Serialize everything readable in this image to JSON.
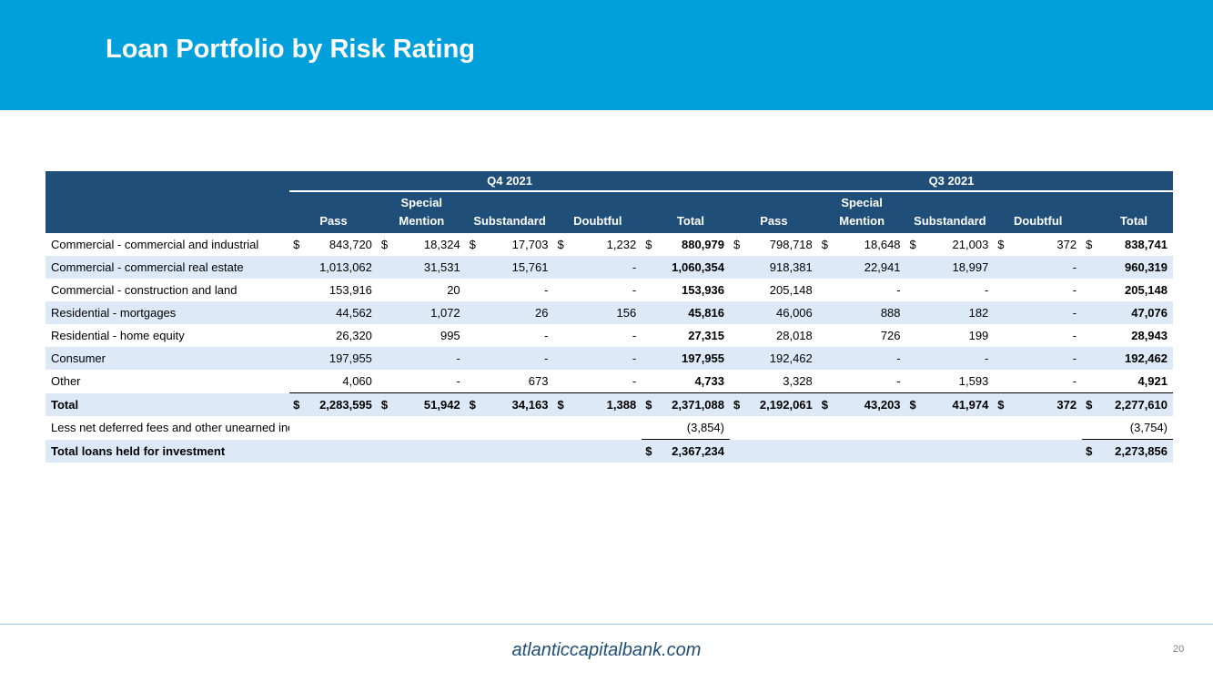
{
  "title": "Loan Portfolio by Risk Rating",
  "periods": [
    "Q4 2021",
    "Q3 2021"
  ],
  "columns": [
    {
      "l1": "",
      "l2": "Pass"
    },
    {
      "l1": "Special",
      "l2": "Mention"
    },
    {
      "l1": "",
      "l2": "Substandard"
    },
    {
      "l1": "",
      "l2": "Doubtful"
    },
    {
      "l1": "",
      "l2": "Total"
    }
  ],
  "rows": [
    {
      "label": "Commercial - commercial and industrial",
      "q4": [
        "843,720",
        "18,324",
        "17,703",
        "1,232",
        "880,979"
      ],
      "q3": [
        "798,718",
        "18,648",
        "21,003",
        "372",
        "838,741"
      ]
    },
    {
      "label": "Commercial - commercial real estate",
      "q4": [
        "1,013,062",
        "31,531",
        "15,761",
        "-",
        "1,060,354"
      ],
      "q3": [
        "918,381",
        "22,941",
        "18,997",
        "-",
        "960,319"
      ]
    },
    {
      "label": "Commercial - construction and land",
      "q4": [
        "153,916",
        "20",
        "-",
        "-",
        "153,936"
      ],
      "q3": [
        "205,148",
        "-",
        "-",
        "-",
        "205,148"
      ]
    },
    {
      "label": "Residential - mortgages",
      "q4": [
        "44,562",
        "1,072",
        "26",
        "156",
        "45,816"
      ],
      "q3": [
        "46,006",
        "888",
        "182",
        "-",
        "47,076"
      ]
    },
    {
      "label": "Residential - home equity",
      "q4": [
        "26,320",
        "995",
        "-",
        "-",
        "27,315"
      ],
      "q3": [
        "28,018",
        "726",
        "199",
        "-",
        "28,943"
      ]
    },
    {
      "label": "Consumer",
      "q4": [
        "197,955",
        "-",
        "-",
        "-",
        "197,955"
      ],
      "q3": [
        "192,462",
        "-",
        "-",
        "-",
        "192,462"
      ]
    },
    {
      "label": "Other",
      "q4": [
        "4,060",
        "-",
        "673",
        "-",
        "4,733"
      ],
      "q3": [
        "3,328",
        "-",
        "1,593",
        "-",
        "4,921"
      ]
    }
  ],
  "total_row": {
    "label": "Total",
    "q4": [
      "2,283,595",
      "51,942",
      "34,163",
      "1,388",
      "2,371,088"
    ],
    "q3": [
      "2,192,061",
      "43,203",
      "41,974",
      "372",
      "2,277,610"
    ]
  },
  "deferred_row": {
    "label": "Less net deferred fees and other unearned income",
    "q4_total": "(3,854)",
    "q3_total": "(3,754)"
  },
  "held_row": {
    "label": "Total loans held for investment",
    "q4_total": "2,367,234",
    "q3_total": "2,273,856"
  },
  "currency_symbol": "$",
  "footer": {
    "url": "atlanticcapitalbank.com",
    "page_number": "20"
  },
  "colors": {
    "header_bg": "#00a0dd",
    "table_header_bg": "#1f4e79",
    "row_shade": "#dde9f6",
    "footer_text": "#1f4e79"
  }
}
